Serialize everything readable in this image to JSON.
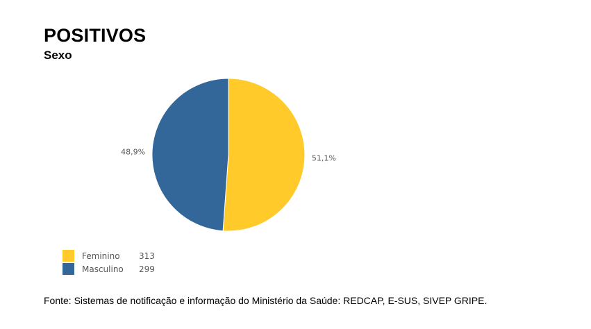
{
  "header": {
    "title": "POSITIVOS",
    "subtitle": "Sexo"
  },
  "colors": {
    "feminino": "#FFCA2A",
    "masculino": "#336699"
  },
  "chart_data": {
    "type": "pie",
    "title": "POSITIVOS",
    "subtitle": "Sexo",
    "categories": [
      "Feminino",
      "Masculino"
    ],
    "values": [
      313,
      299
    ],
    "percent_labels": [
      "51,1%",
      "48,9%"
    ],
    "colors": [
      "#FFCA2A",
      "#336699"
    ],
    "legend_placement": "bottom-left"
  },
  "legend": {
    "items": [
      {
        "label": "Feminino",
        "value": "313"
      },
      {
        "label": "Masculino",
        "value": "299"
      }
    ]
  },
  "footer": {
    "source": "Fonte:  Sistemas de notificação e informação do Ministério da Saúde: REDCAP, E-SUS, SIVEP GRIPE."
  }
}
